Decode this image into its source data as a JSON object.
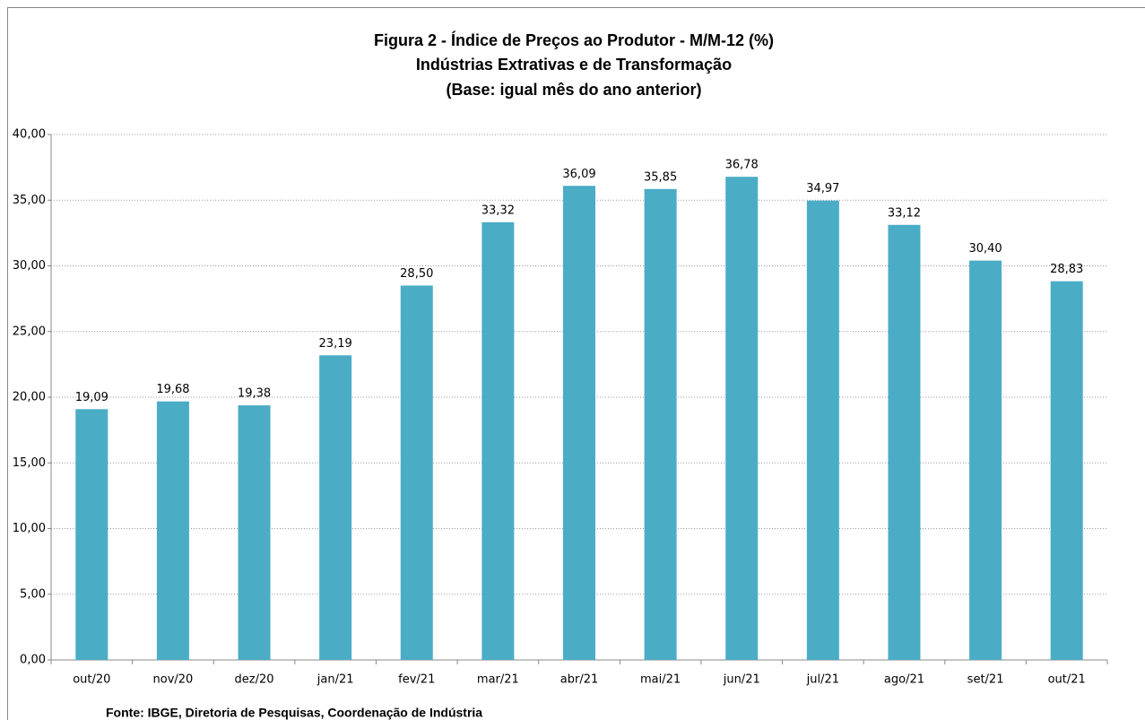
{
  "chart_data": {
    "type": "bar",
    "title": [
      "Figura 2 - Índice de Preços ao Produtor - M/M-12 (%)",
      "Indústrias Extrativas e de Transformação",
      "(Base: igual mês do ano anterior)"
    ],
    "categories": [
      "out/20",
      "nov/20",
      "dez/20",
      "jan/21",
      "fev/21",
      "mar/21",
      "abr/21",
      "mai/21",
      "jun/21",
      "jul/21",
      "ago/21",
      "set/21",
      "out/21"
    ],
    "values": [
      19.09,
      19.68,
      19.38,
      23.19,
      28.5,
      33.32,
      36.09,
      35.85,
      36.78,
      34.97,
      33.12,
      30.4,
      28.83
    ],
    "value_labels": [
      "19,09",
      "19,68",
      "19,38",
      "23,19",
      "28,50",
      "33,32",
      "36,09",
      "35,85",
      "36,78",
      "34,97",
      "33,12",
      "30,40",
      "28,83"
    ],
    "color": "#4bacc6",
    "ylim": [
      0,
      40
    ],
    "yticks": [
      {
        "value": 0,
        "label": "0,00"
      },
      {
        "value": 5,
        "label": "5,00"
      },
      {
        "value": 10,
        "label": "10,00"
      },
      {
        "value": 15,
        "label": "15,00"
      },
      {
        "value": 20,
        "label": "20,00"
      },
      {
        "value": 25,
        "label": "25,00"
      },
      {
        "value": 30,
        "label": "30,00"
      },
      {
        "value": 35,
        "label": "35,00"
      },
      {
        "value": 40,
        "label": "40,00"
      }
    ],
    "grid": true,
    "source": "Fonte: IBGE, Diretoria de Pesquisas, Coordenação de Indústria"
  }
}
